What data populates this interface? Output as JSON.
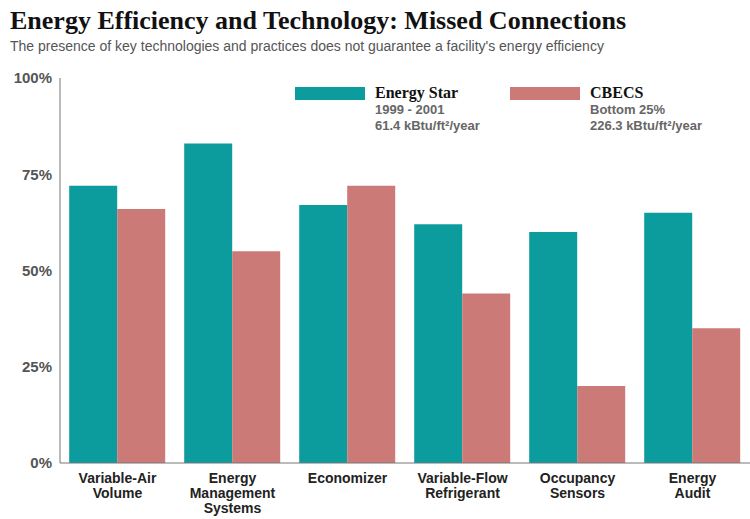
{
  "chart_data": {
    "type": "bar",
    "title": "Energy Efficiency and Technology: Missed Connections",
    "subtitle": "The presence of key technologies and practices does not guarantee a facility's energy efficiency",
    "categories": [
      "Variable-Air Volume",
      "Energy Management Systems",
      "Economizer",
      "Variable-Flow Refrigerant",
      "Occupancy Sensors",
      "Energy Audit"
    ],
    "series": [
      {
        "name": "Energy Star",
        "color": "#0c9c9e",
        "values": [
          72,
          83,
          67,
          62,
          60,
          65
        ],
        "annotations": [
          "1999 - 2001",
          "61.4 kBtu/ft²/year"
        ]
      },
      {
        "name": "CBECS",
        "color": "#cc7a78",
        "values": [
          66,
          55,
          72,
          44,
          20,
          35
        ],
        "annotations": [
          "Bottom 25%",
          "226.3 kBtu/ft²/year"
        ]
      }
    ],
    "ylim": [
      0,
      100
    ],
    "yticks": [
      {
        "value": 0,
        "label": "0%"
      },
      {
        "value": 25,
        "label": "25%"
      },
      {
        "value": 50,
        "label": "50%"
      },
      {
        "value": 75,
        "label": "75%"
      },
      {
        "value": 100,
        "label": "100%"
      }
    ],
    "grid": false,
    "legend": "top right"
  }
}
